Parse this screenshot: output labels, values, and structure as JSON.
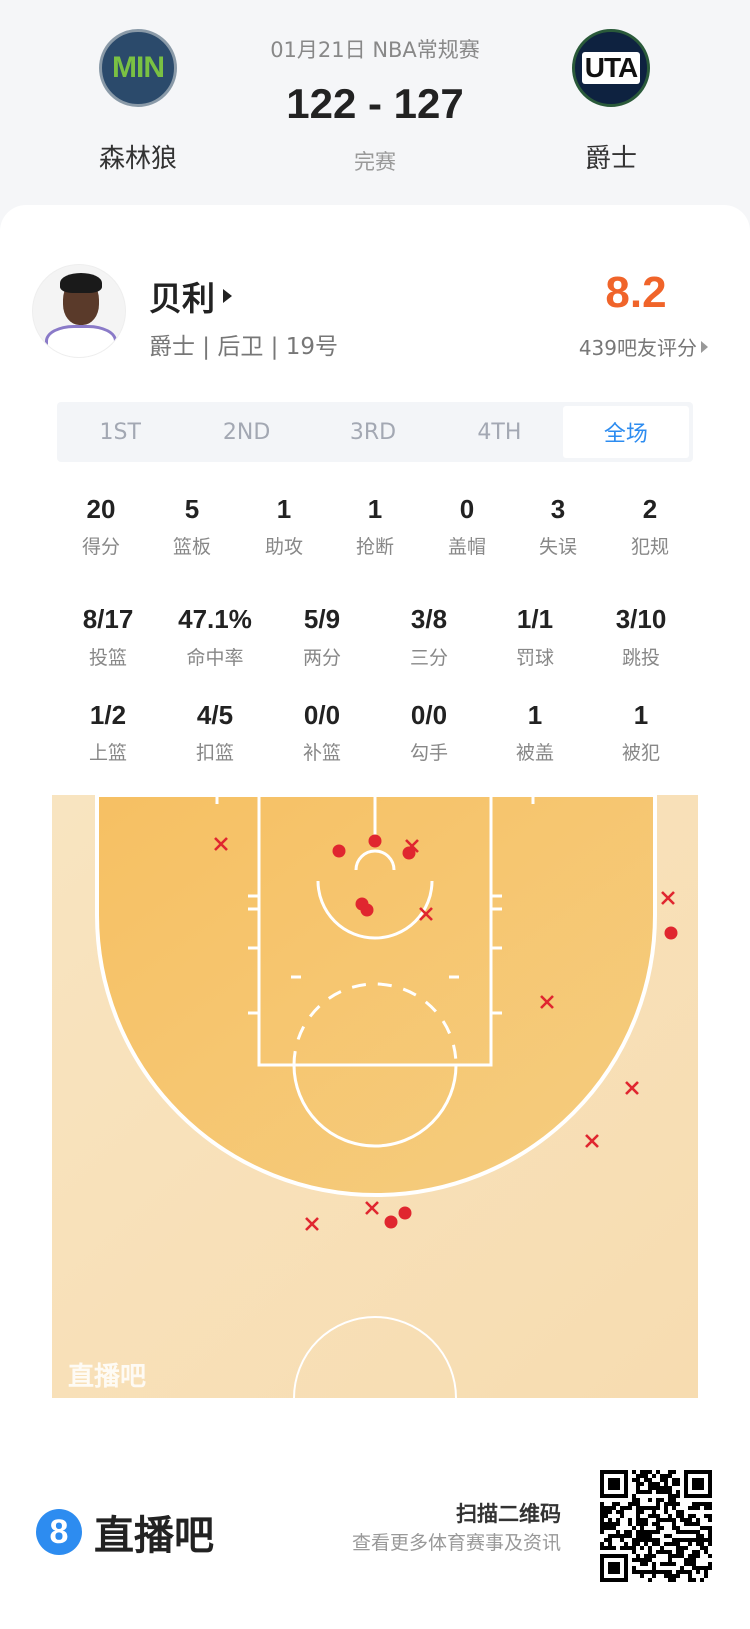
{
  "header": {
    "date_league": "01月21日 NBA常规赛",
    "score": "122 - 127",
    "status": "完赛",
    "home": {
      "abbr": "MIN",
      "name": "森林狼",
      "color": "#2b4a6b",
      "text_color": "#7ac143"
    },
    "away": {
      "abbr": "UTA",
      "name": "爵士",
      "color": "#0e2240",
      "text_color": "#111111"
    }
  },
  "player": {
    "name": "贝利",
    "info": "爵士 | 后卫 | 19号",
    "rating": "8.2",
    "rating_count": "439吧友评分",
    "rating_color": "#f0642a"
  },
  "tabs": [
    {
      "label": "1ST",
      "active": false
    },
    {
      "label": "2ND",
      "active": false
    },
    {
      "label": "3RD",
      "active": false
    },
    {
      "label": "4TH",
      "active": false
    },
    {
      "label": "全场",
      "active": true
    }
  ],
  "stats_row1": [
    {
      "value": "20",
      "label": "得分"
    },
    {
      "value": "5",
      "label": "篮板"
    },
    {
      "value": "1",
      "label": "助攻"
    },
    {
      "value": "1",
      "label": "抢断"
    },
    {
      "value": "0",
      "label": "盖帽"
    },
    {
      "value": "3",
      "label": "失误"
    },
    {
      "value": "2",
      "label": "犯规"
    }
  ],
  "stats_row2": [
    {
      "value": "8/17",
      "label": "投篮"
    },
    {
      "value": "47.1%",
      "label": "命中率"
    },
    {
      "value": "5/9",
      "label": "两分"
    },
    {
      "value": "3/8",
      "label": "三分"
    },
    {
      "value": "1/1",
      "label": "罚球"
    },
    {
      "value": "3/10",
      "label": "跳投"
    }
  ],
  "stats_row3": [
    {
      "value": "1/2",
      "label": "上篮"
    },
    {
      "value": "4/5",
      "label": "扣篮"
    },
    {
      "value": "0/0",
      "label": "补篮"
    },
    {
      "value": "0/0",
      "label": "勾手"
    },
    {
      "value": "1",
      "label": "被盖"
    },
    {
      "value": "1",
      "label": "被犯"
    }
  ],
  "shot_chart": {
    "watermark": "直播吧",
    "made_count": 8,
    "missed_count": 9,
    "made_color": "#e0262f",
    "missed_color": "#e0262f",
    "court_outer_color": "#f8e0b8",
    "court_inner_color": "#f6c56c"
  },
  "footer": {
    "brand": "直播吧",
    "scan": "扫描二维码",
    "scan_sub": "查看更多体育赛事及资讯",
    "brand_color": "#2d8cf0"
  }
}
